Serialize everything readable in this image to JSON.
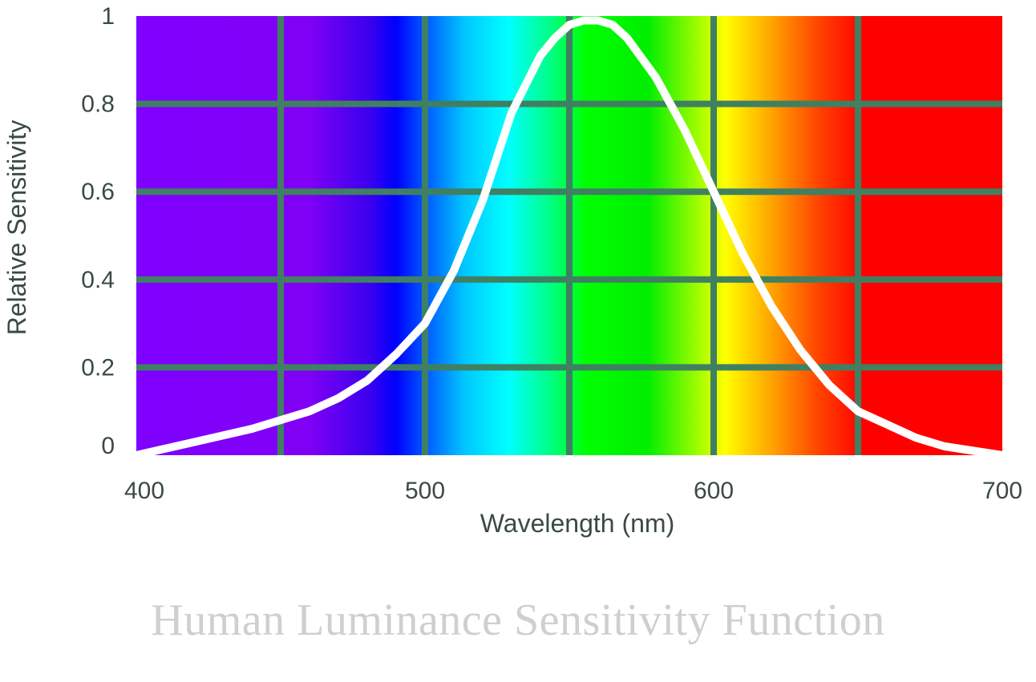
{
  "chart_data": {
    "type": "line",
    "title": "",
    "caption": "Human Luminance Sensitivity Function",
    "xlabel": "Wavelength (nm)",
    "ylabel": "Relative Sensitivity",
    "xlim": [
      400,
      700
    ],
    "ylim": [
      0,
      1
    ],
    "x_ticks": [
      "400",
      "500",
      "600",
      "700"
    ],
    "y_ticks": [
      "0",
      "0.2",
      "0.4",
      "0.6",
      "0.8",
      "1"
    ],
    "grid_x": [
      450,
      500,
      550,
      600,
      650
    ],
    "grid_y": [
      0.2,
      0.4,
      0.6,
      0.8
    ],
    "grid": true,
    "background": "visible spectrum gradient",
    "colors": {
      "curve": "#ffffff",
      "grid": "#3f8062",
      "text": "#3a4a44",
      "caption": "#cfcfcf"
    },
    "series": [
      {
        "x": [
          400,
          420,
          440,
          460,
          470,
          480,
          490,
          500,
          510,
          520,
          530,
          540,
          545,
          550,
          555,
          560,
          565,
          570,
          580,
          590,
          600,
          610,
          620,
          630,
          640,
          650,
          660,
          670,
          680,
          690,
          700
        ],
        "y": [
          0.0,
          0.03,
          0.06,
          0.1,
          0.13,
          0.17,
          0.23,
          0.3,
          0.42,
          0.58,
          0.78,
          0.91,
          0.95,
          0.98,
          0.99,
          0.99,
          0.98,
          0.95,
          0.86,
          0.74,
          0.6,
          0.46,
          0.34,
          0.24,
          0.16,
          0.1,
          0.07,
          0.04,
          0.02,
          0.01,
          0.0
        ]
      }
    ]
  }
}
